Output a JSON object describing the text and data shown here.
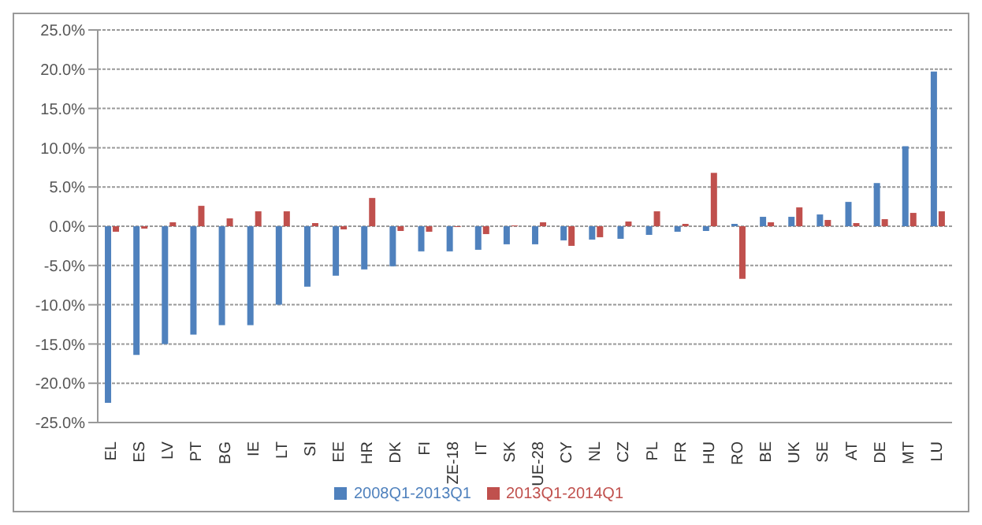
{
  "chart_data": {
    "type": "bar",
    "categories": [
      "EL",
      "ES",
      "LV",
      "PT",
      "BG",
      "IE",
      "LT",
      "SI",
      "EE",
      "HR",
      "DK",
      "FI",
      "ZE-18",
      "IT",
      "SK",
      "UE-28",
      "CY",
      "NL",
      "CZ",
      "PL",
      "FR",
      "HU",
      "RO",
      "BE",
      "UK",
      "SE",
      "AT",
      "DE",
      "MT",
      "LU"
    ],
    "series": [
      {
        "name": "2008Q1-2013Q1",
        "color": "#4f81bd",
        "values": [
          -22.5,
          -16.4,
          -15.0,
          -13.8,
          -12.6,
          -12.6,
          -10.0,
          -7.7,
          -6.3,
          -5.5,
          -5.1,
          -3.2,
          -3.2,
          -3.0,
          -2.3,
          -2.3,
          -1.8,
          -1.7,
          -1.6,
          -1.1,
          -0.7,
          -0.6,
          0.3,
          1.2,
          1.2,
          1.5,
          3.1,
          5.5,
          10.2,
          19.7
        ]
      },
      {
        "name": "2013Q1-2014Q1",
        "color": "#c0504d",
        "values": [
          -0.7,
          -0.3,
          0.5,
          2.6,
          1.0,
          1.9,
          1.9,
          0.4,
          -0.4,
          3.6,
          -0.6,
          -0.7,
          -0.1,
          -1.0,
          0.1,
          0.5,
          -2.5,
          -1.4,
          0.6,
          1.9,
          0.3,
          6.8,
          -6.7,
          0.5,
          2.4,
          0.8,
          0.4,
          0.9,
          1.7,
          1.9
        ]
      }
    ],
    "ylim": [
      -25,
      25
    ],
    "yticks": [
      {
        "value": -25,
        "label": "-25.0%"
      },
      {
        "value": -20,
        "label": "-20.0%"
      },
      {
        "value": -15,
        "label": "-15.0%"
      },
      {
        "value": -10,
        "label": "-10.0%"
      },
      {
        "value": -5,
        "label": "-5.0%"
      },
      {
        "value": 0,
        "label": "0.0%"
      },
      {
        "value": 5,
        "label": "5.0%"
      },
      {
        "value": 10,
        "label": "10.0%"
      },
      {
        "value": 15,
        "label": "15.0%"
      },
      {
        "value": 20,
        "label": "20.0%"
      },
      {
        "value": 25,
        "label": "25.0%"
      }
    ],
    "grid": "y",
    "legend": "bottom"
  }
}
